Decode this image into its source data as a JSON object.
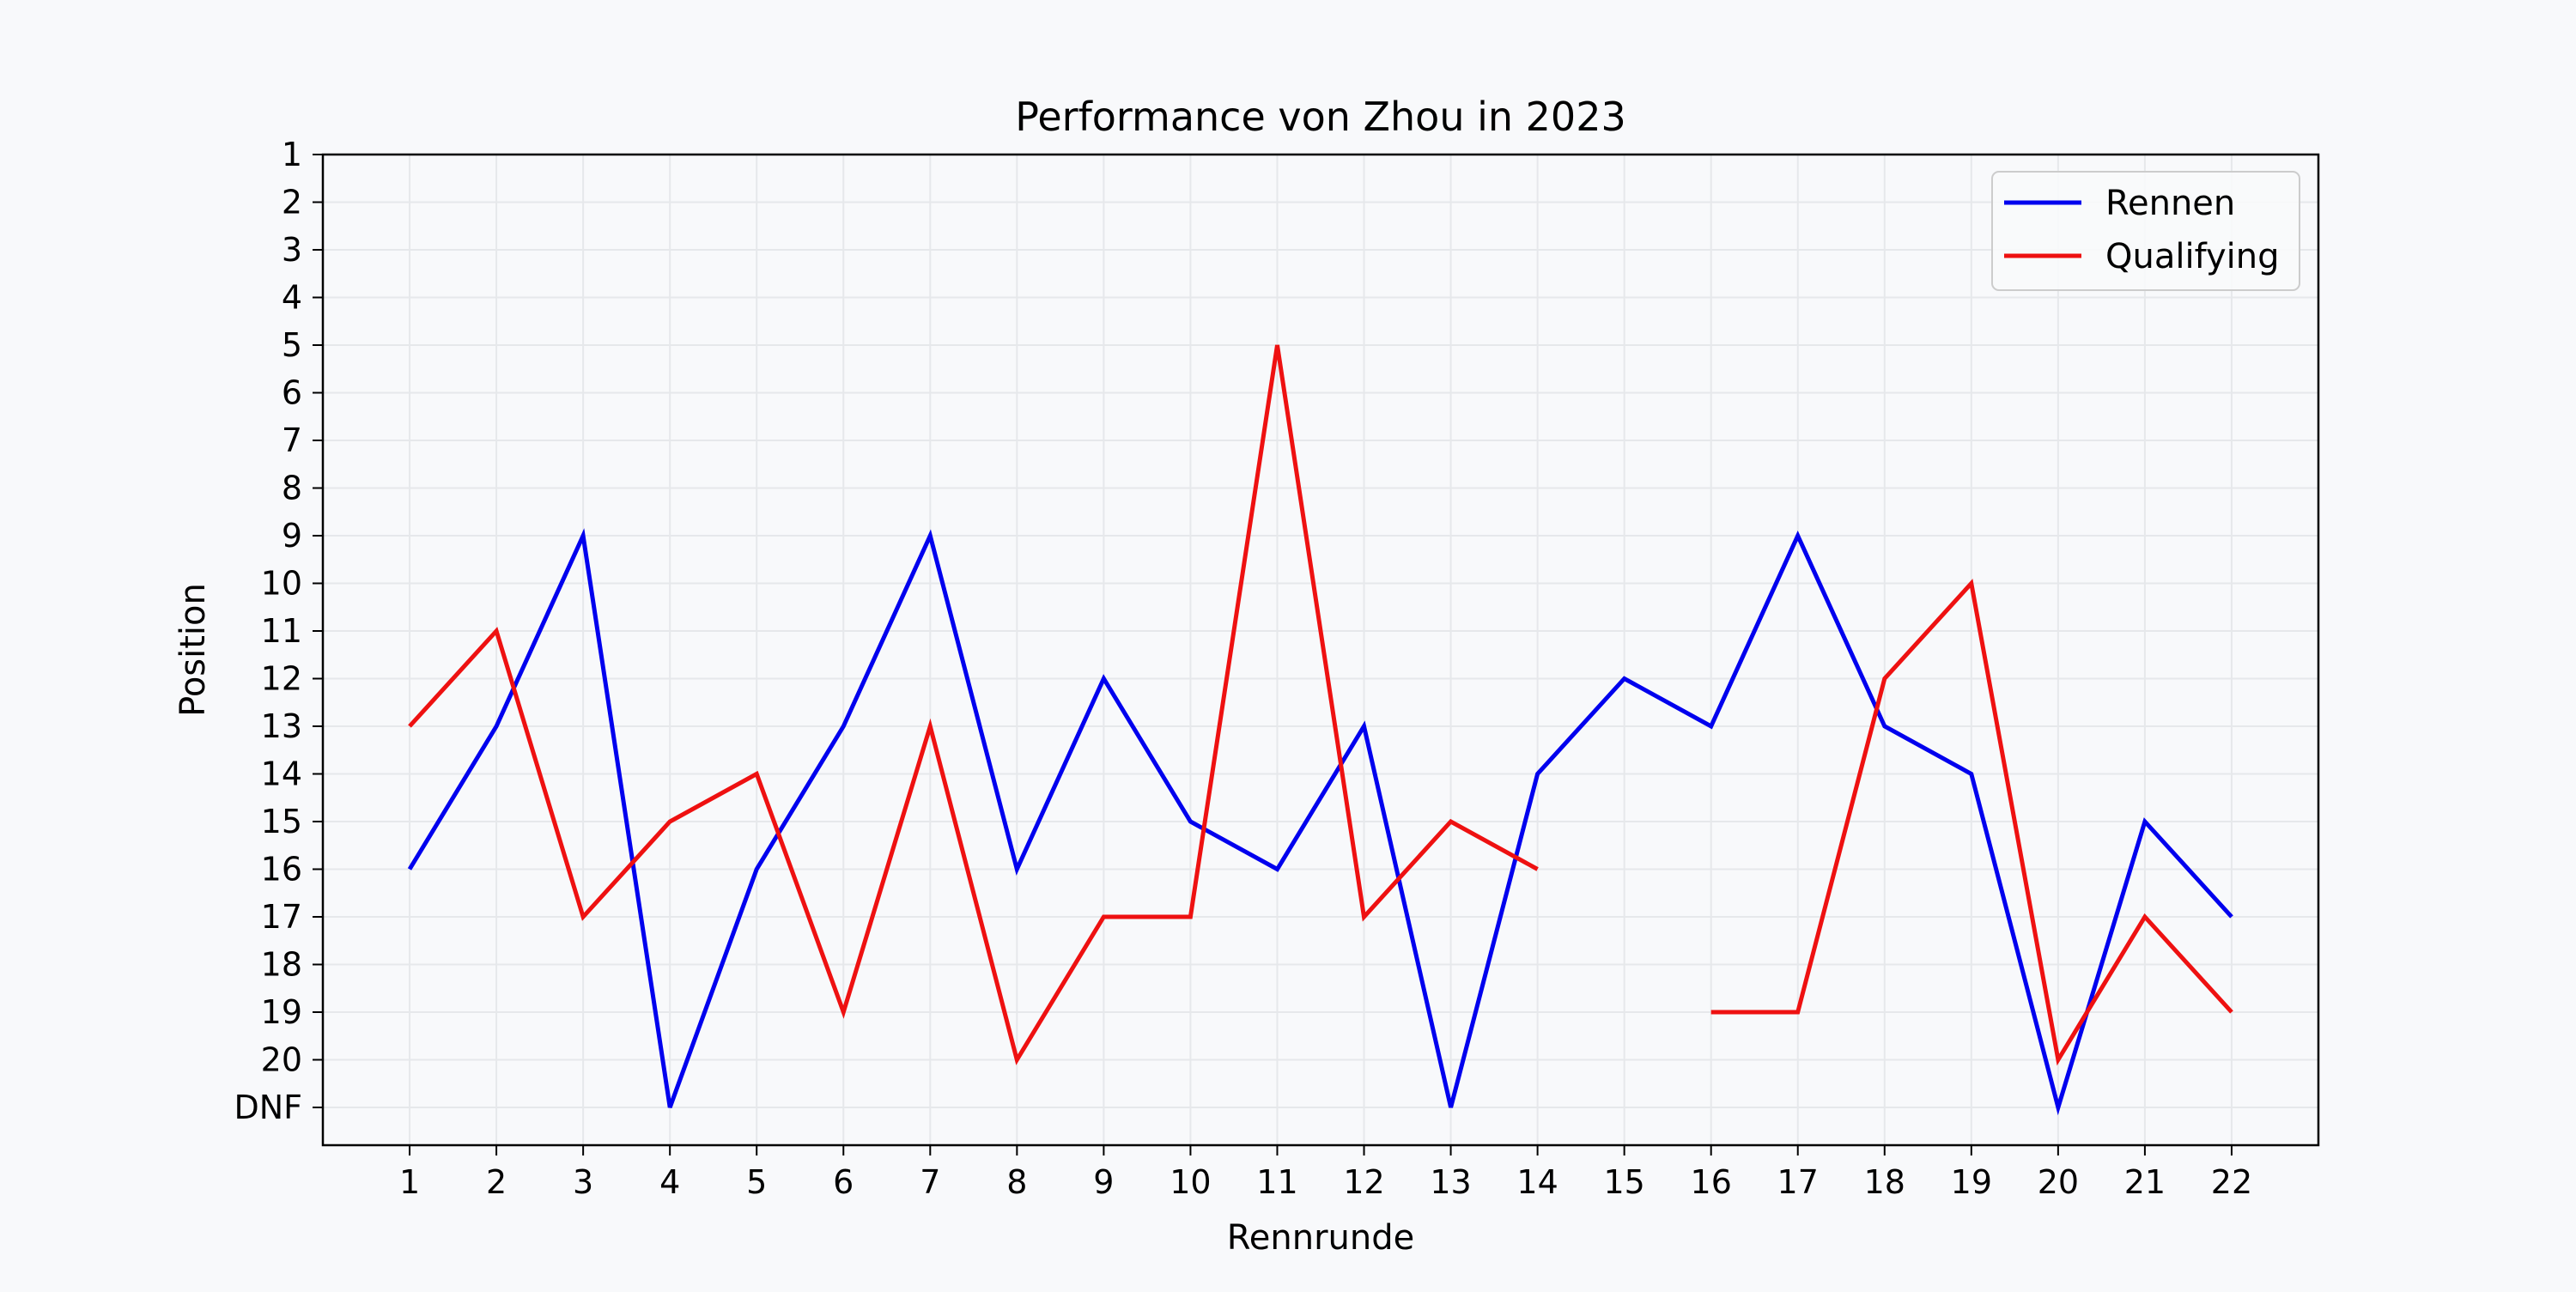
{
  "chart_data": {
    "type": "line",
    "title": "Performance von Zhou in 2023",
    "xlabel": "Rennrunde",
    "ylabel": "Position",
    "x": [
      1,
      2,
      3,
      4,
      5,
      6,
      7,
      8,
      9,
      10,
      11,
      12,
      13,
      14,
      15,
      16,
      17,
      18,
      19,
      20,
      21,
      22
    ],
    "x_tick_labels": [
      "1",
      "2",
      "3",
      "4",
      "5",
      "6",
      "7",
      "8",
      "9",
      "10",
      "11",
      "12",
      "13",
      "14",
      "15",
      "16",
      "17",
      "18",
      "19",
      "20",
      "21",
      "22"
    ],
    "y_tick_labels": [
      "1",
      "2",
      "3",
      "4",
      "5",
      "6",
      "7",
      "8",
      "9",
      "10",
      "11",
      "12",
      "13",
      "14",
      "15",
      "16",
      "17",
      "18",
      "19",
      "20",
      "DNF"
    ],
    "y_inverted": true,
    "ylim": [
      1,
      21
    ],
    "grid": true,
    "legend_position": "top-right",
    "series": [
      {
        "name": "Rennen",
        "color": "#0000ee",
        "values": [
          16,
          13,
          9,
          "DNF",
          16,
          13,
          9,
          16,
          12,
          15,
          16,
          13,
          "DNF",
          14,
          12,
          13,
          9,
          13,
          14,
          "DNF",
          15,
          17
        ]
      },
      {
        "name": "Qualifying",
        "color": "#ee1111",
        "values": [
          13,
          11,
          17,
          15,
          14,
          19,
          13,
          20,
          17,
          17,
          5,
          17,
          15,
          16,
          null,
          19,
          19,
          12,
          10,
          20,
          17,
          19
        ]
      }
    ]
  }
}
